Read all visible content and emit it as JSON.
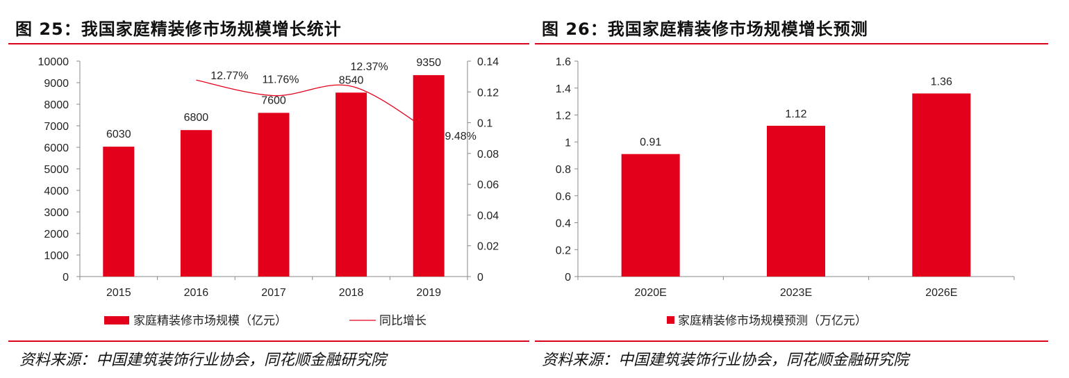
{
  "panels": [
    {
      "title": "图 25：我国家庭精装修市场规模增长统计",
      "source": "资料来源：中国建筑装饰行业协会，同花顺金融研究院"
    },
    {
      "title": "图 26：我国家庭精装修市场规模增长预测",
      "source": "资料来源：中国建筑装饰行业协会，同花顺金融研究院"
    }
  ],
  "colors": {
    "accent": "#e3001b",
    "rule": "#d9001b",
    "axis": "#888888"
  },
  "chart_data": [
    {
      "type": "bar",
      "categories": [
        "2015",
        "2016",
        "2017",
        "2018",
        "2019"
      ],
      "series": [
        {
          "name": "家庭精装修市场规模（亿元）",
          "type": "bar",
          "axis": "left",
          "values": [
            6030,
            6800,
            7600,
            8540,
            9350
          ],
          "labels": [
            "6030",
            "6800",
            "7600",
            "8540",
            "9350"
          ]
        },
        {
          "name": "同比增长",
          "type": "line",
          "axis": "right",
          "x": [
            "2016",
            "2017",
            "2018",
            "2019"
          ],
          "values": [
            0.1277,
            0.1176,
            0.1237,
            0.0948
          ],
          "labels": [
            "12.77%",
            "11.76%",
            "12.37%",
            "9.48%"
          ]
        }
      ],
      "ylim": [
        0,
        10000
      ],
      "yticks": [
        "10000",
        "9000",
        "8000",
        "7000",
        "6000",
        "5000",
        "4000",
        "3000",
        "2000",
        "1000",
        "0"
      ],
      "y2lim": [
        0,
        0.14
      ],
      "y2ticks": [
        "0.14",
        "0.12",
        "0.1",
        "0.08",
        "0.06",
        "0.04",
        "0.02",
        "0"
      ],
      "legend": "bottom",
      "grid": false
    },
    {
      "type": "bar",
      "categories": [
        "2020E",
        "2023E",
        "2026E"
      ],
      "series": [
        {
          "name": "家庭精装修市场规模预测（万亿元）",
          "values": [
            0.91,
            1.12,
            1.36
          ],
          "labels": [
            "0.91",
            "1.12",
            "1.36"
          ]
        }
      ],
      "ylim": [
        0,
        1.6
      ],
      "yticks": [
        "1.6",
        "1.4",
        "1.2",
        "1",
        "0.8",
        "0.6",
        "0.4",
        "0.2",
        "0"
      ],
      "legend": "bottom",
      "grid": false
    }
  ]
}
